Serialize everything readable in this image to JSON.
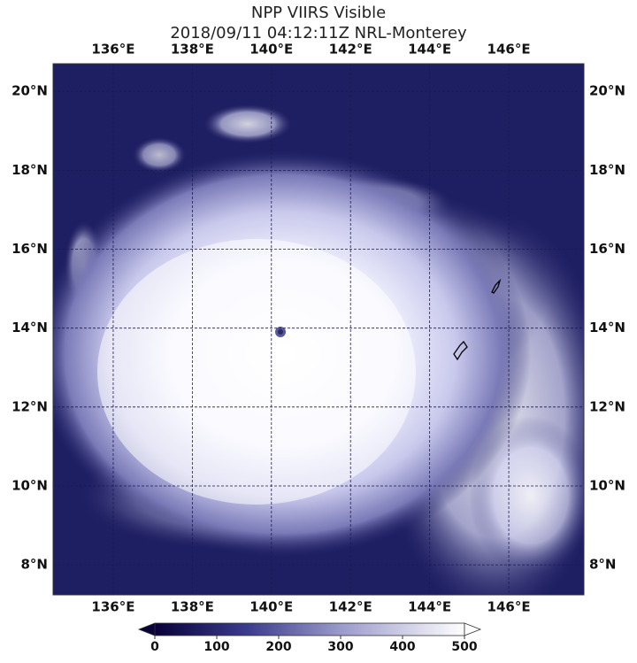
{
  "title": "NPP VIIRS Visible",
  "subtitle": "2018/09/11 04:12:11Z NRL-Monterey",
  "map": {
    "lon_lim": [
      134.48,
      147.9
    ],
    "lat_lim": [
      7.24,
      20.7
    ],
    "lon_ticks": [
      {
        "value": 136,
        "label": "136°E"
      },
      {
        "value": 138,
        "label": "138°E"
      },
      {
        "value": 140,
        "label": "140°E"
      },
      {
        "value": 142,
        "label": "142°E"
      },
      {
        "value": 144,
        "label": "144°E"
      },
      {
        "value": 146,
        "label": "146°E"
      }
    ],
    "lat_ticks": [
      {
        "value": 20,
        "label": "20°N"
      },
      {
        "value": 18,
        "label": "18°N"
      },
      {
        "value": 16,
        "label": "16°N"
      },
      {
        "value": 14,
        "label": "14°N"
      },
      {
        "value": 12,
        "label": "12°N"
      },
      {
        "value": 10,
        "label": "10°N"
      },
      {
        "value": 8,
        "label": "8°N"
      }
    ]
  },
  "colorbar": {
    "lim": [
      0,
      500
    ],
    "ticks": [
      0,
      100,
      200,
      300,
      400,
      500
    ]
  }
}
